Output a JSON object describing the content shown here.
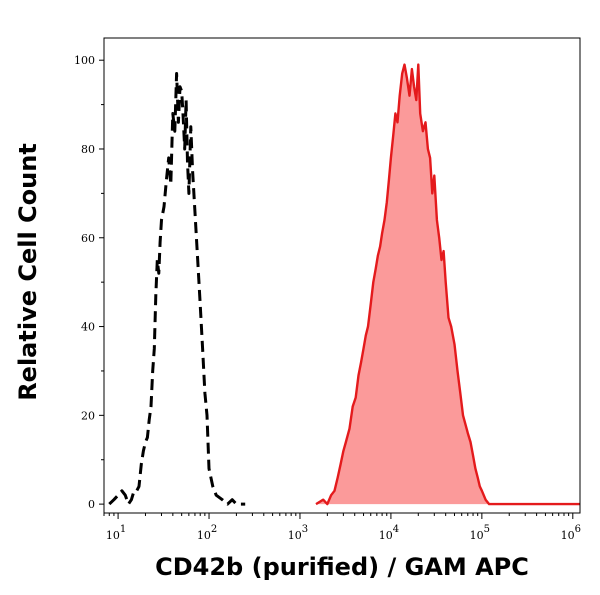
{
  "chart_data": {
    "type": "area",
    "title": "",
    "xlabel": "CD42b (purified) / GAM APC",
    "ylabel": "Relative Cell Count",
    "x_scale": "log",
    "xlim": [
      7,
      1200000
    ],
    "ylim": [
      -2,
      105
    ],
    "x_ticks": [
      {
        "value": 10,
        "base": "10",
        "exp": "1"
      },
      {
        "value": 100,
        "base": "10",
        "exp": "2"
      },
      {
        "value": 1000,
        "base": "10",
        "exp": "3"
      },
      {
        "value": 10000,
        "base": "10",
        "exp": "4"
      },
      {
        "value": 100000,
        "base": "10",
        "exp": "5"
      },
      {
        "value": 1000000,
        "base": "10",
        "exp": "6"
      }
    ],
    "y_ticks": [
      0,
      20,
      40,
      60,
      80,
      100
    ],
    "y_tick_labels": [
      "0",
      "20",
      "40",
      "60",
      "80",
      "100"
    ],
    "grid": false,
    "legend": "none",
    "series": [
      {
        "style": "dashed",
        "color": "#000000",
        "fill": "none",
        "x": [
          8,
          9,
          10,
          11,
          12,
          13,
          14,
          15,
          16,
          17,
          18,
          19,
          20,
          21,
          22,
          23,
          24,
          25,
          26,
          27,
          28,
          29,
          30,
          32,
          34,
          36,
          38,
          40,
          42,
          44,
          46,
          48,
          50,
          52,
          54,
          56,
          58,
          60,
          63,
          66,
          70,
          75,
          80,
          85,
          90,
          95,
          100,
          110,
          120,
          140,
          160,
          180,
          200,
          250
        ],
        "y": [
          0,
          1,
          2,
          3,
          2,
          0,
          1,
          3,
          3,
          4,
          9,
          12,
          14,
          15,
          19,
          22,
          30,
          35,
          47,
          55,
          52,
          59,
          64,
          67,
          73,
          78,
          72,
          88,
          84,
          97,
          86,
          94,
          93,
          87,
          80,
          91,
          77,
          70,
          85,
          75,
          66,
          55,
          45,
          35,
          25,
          20,
          8,
          4,
          2,
          1,
          0,
          1,
          0,
          0
        ]
      },
      {
        "style": "solid",
        "color": "#e41a1c",
        "fill": "#fb9a9a",
        "x": [
          1500,
          1800,
          2000,
          2200,
          2400,
          2600,
          2800,
          3000,
          3200,
          3500,
          3800,
          4100,
          4400,
          4700,
          5000,
          5300,
          5600,
          6000,
          6400,
          6800,
          7200,
          7600,
          8000,
          8500,
          9000,
          9500,
          10000,
          10600,
          11200,
          11800,
          12500,
          13300,
          14100,
          15000,
          16000,
          17000,
          18000,
          19000,
          20000,
          21000,
          22500,
          24000,
          25500,
          27000,
          28500,
          30000,
          32000,
          34000,
          36000,
          38000,
          40000,
          43000,
          46000,
          50000,
          54000,
          58000,
          62000,
          66000,
          70000,
          75000,
          80000,
          85000,
          90000,
          95000,
          100000,
          110000,
          120000,
          1200000
        ],
        "y": [
          0,
          1,
          0,
          2,
          3,
          6,
          9,
          12,
          14,
          17,
          22,
          24,
          29,
          32,
          35,
          38,
          40,
          45,
          50,
          53,
          56,
          58,
          61,
          64,
          68,
          73,
          78,
          83,
          88,
          86,
          92,
          97,
          99,
          96,
          92,
          98,
          94,
          91,
          99,
          88,
          84,
          86,
          80,
          78,
          70,
          74,
          64,
          60,
          55,
          57,
          50,
          42,
          40,
          36,
          30,
          25,
          20,
          18,
          16,
          14,
          11,
          8,
          6,
          4,
          3,
          1,
          0,
          0
        ]
      }
    ]
  }
}
